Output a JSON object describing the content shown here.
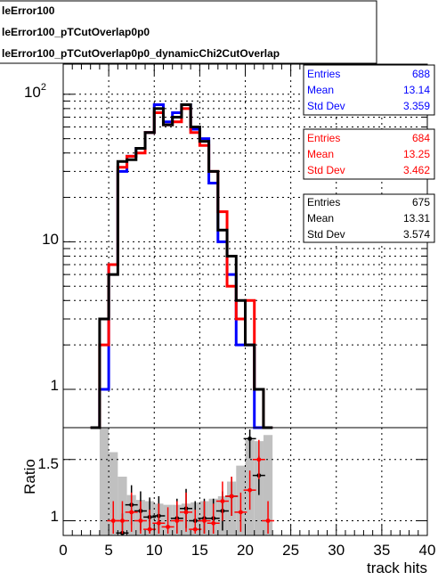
{
  "legend": {
    "entries": [
      "leError100",
      "leError100_pTCutOverlap0p0",
      "leError100_pTCutOverlap0p0_dynamicChi2CutOverlap"
    ]
  },
  "colors": {
    "series": [
      "#0000ff",
      "#ff0000",
      "#000000"
    ],
    "ratio_band": "#c0c0c0",
    "ratio_marker": "#ff0000"
  },
  "stats": [
    {
      "labels": [
        "Entries",
        "Mean",
        "Std Dev"
      ],
      "values": [
        "688",
        "13.14",
        "3.359"
      ]
    },
    {
      "labels": [
        "Entries",
        "Mean",
        "Std Dev"
      ],
      "values": [
        "684",
        "13.25",
        "3.462"
      ]
    },
    {
      "labels": [
        "Entries",
        "Mean",
        "Std Dev"
      ],
      "values": [
        "675",
        "13.31",
        "3.574"
      ]
    }
  ],
  "axes": {
    "xlabel": "track hits",
    "ratio_ylabel": "Ratio",
    "x_ticks": [
      "0",
      "5",
      "10",
      "15",
      "20",
      "25",
      "30",
      "35",
      "40"
    ],
    "y_ticks_top": [
      "1",
      "10",
      "10"
    ],
    "y_tick_top_exponent": "2",
    "y_ticks_ratio": [
      "1",
      "1.5"
    ]
  },
  "chart_data": {
    "type": "histogram",
    "x_bin_width": 1,
    "x_first_bin_low": 3,
    "xlim": [
      0,
      40
    ],
    "top_panel": {
      "yscale": "log",
      "ylim": [
        0.55,
        160
      ]
    },
    "ratio_panel": {
      "ylim": [
        0.88,
        1.76
      ]
    },
    "series": [
      {
        "values": [
          0,
          1,
          7,
          30,
          38,
          43,
          55,
          85,
          65,
          75,
          85,
          58,
          50,
          25,
          10,
          6,
          2,
          2,
          0,
          0
        ]
      },
      {
        "values": [
          0,
          2,
          7,
          32,
          38,
          40,
          55,
          75,
          62,
          65,
          80,
          55,
          45,
          30,
          16,
          5,
          3,
          4,
          1,
          0
        ]
      },
      {
        "values": [
          0,
          3,
          6,
          35,
          36,
          43,
          55,
          80,
          62,
          70,
          85,
          60,
          48,
          30,
          12,
          8,
          4,
          2,
          1,
          0
        ]
      }
    ],
    "ratio": {
      "bins_x": [
        4.5,
        5.5,
        6.5,
        7.5,
        8.5,
        9.5,
        10.5,
        11.5,
        12.5,
        13.5,
        14.5,
        15.5,
        16.5,
        17.5,
        18.5,
        19.5,
        20.5,
        21.5,
        22.5
      ],
      "band_upper": [
        1.76,
        1.56,
        1.36,
        1.21,
        1.17,
        1.16,
        1.14,
        1.13,
        1.13,
        1.14,
        1.15,
        1.16,
        1.18,
        1.2,
        1.32,
        1.45,
        1.66,
        1.65,
        1.7
      ],
      "red_markers": [
        {
          "x": 5.5,
          "y": 1.0
        },
        {
          "x": 6.5,
          "y": 1.0
        },
        {
          "x": 7.5,
          "y": 1.07
        },
        {
          "x": 8.5,
          "y": 1.0
        },
        {
          "x": 9.5,
          "y": 0.93
        },
        {
          "x": 10.5,
          "y": 0.98
        },
        {
          "x": 11.5,
          "y": 0.95
        },
        {
          "x": 12.5,
          "y": 1.0
        },
        {
          "x": 13.5,
          "y": 1.07
        },
        {
          "x": 14.5,
          "y": 0.93
        },
        {
          "x": 15.5,
          "y": 1.0
        },
        {
          "x": 16.5,
          "y": 0.98
        },
        {
          "x": 17.5,
          "y": 1.16
        },
        {
          "x": 18.5,
          "y": 1.2
        },
        {
          "x": 19.5,
          "y": 1.07
        },
        {
          "x": 20.5,
          "y": 1.25
        },
        {
          "x": 21.5,
          "y": 1.5
        },
        {
          "x": 22.5,
          "y": 1.0
        }
      ],
      "black_markers": [
        {
          "x": 6.5,
          "y": 0.9
        },
        {
          "x": 7.5,
          "y": 1.13
        },
        {
          "x": 8.5,
          "y": 1.08
        },
        {
          "x": 9.5,
          "y": 1.03
        },
        {
          "x": 10.5,
          "y": 1.04
        },
        {
          "x": 12.5,
          "y": 1.02
        },
        {
          "x": 13.5,
          "y": 1.1
        },
        {
          "x": 14.5,
          "y": 1.0
        },
        {
          "x": 15.5,
          "y": 1.02
        },
        {
          "x": 16.5,
          "y": 1.02
        },
        {
          "x": 17.5,
          "y": 1.08
        },
        {
          "x": 18.5,
          "y": 1.2
        },
        {
          "x": 20.5,
          "y": 1.67
        },
        {
          "x": 21.5,
          "y": 1.37
        }
      ]
    }
  }
}
